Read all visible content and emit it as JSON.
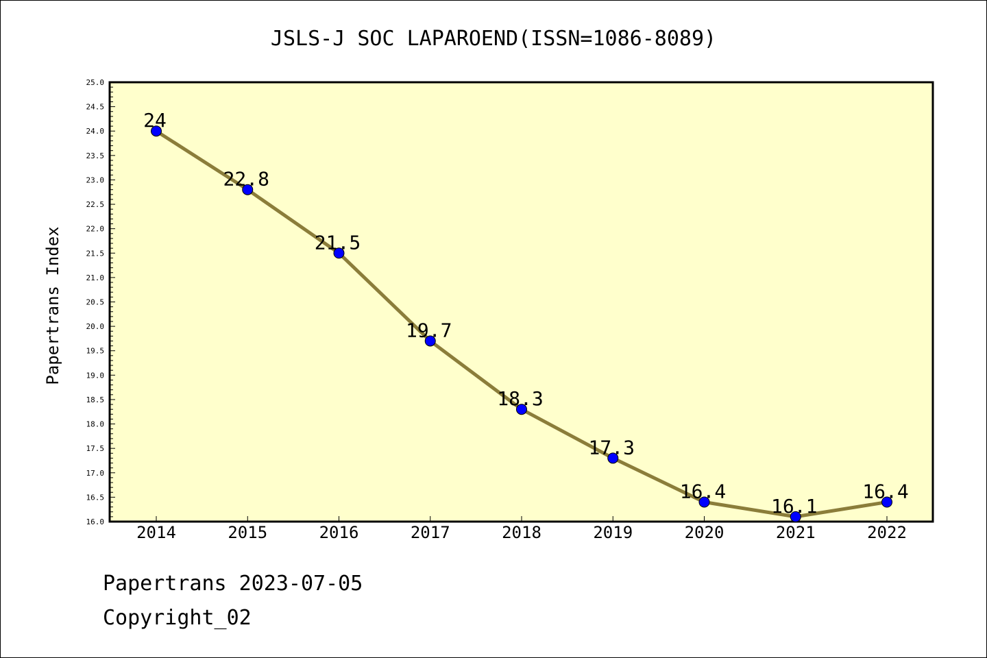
{
  "chart_data": {
    "type": "line",
    "title": "JSLS-J SOC LAPAROEND(ISSN=1086-8089)",
    "ylabel": "Papertrans Index",
    "xlabel": "",
    "categories": [
      "2014",
      "2015",
      "2016",
      "2017",
      "2018",
      "2019",
      "2020",
      "2021",
      "2022"
    ],
    "values": [
      24,
      22.8,
      21.5,
      19.7,
      18.3,
      17.3,
      16.4,
      16.1,
      16.4
    ],
    "data_labels": [
      "24",
      "22.8",
      "21.5",
      "19.7",
      "18.3",
      "17.3",
      "16.4",
      "16.1",
      "16.4"
    ],
    "ylim": [
      16.0,
      25.0
    ],
    "yticks": [
      "16.0",
      "16.5",
      "17.0",
      "17.5",
      "18.0",
      "18.5",
      "19.0",
      "19.5",
      "20.0",
      "20.5",
      "21.0",
      "21.5",
      "22.0",
      "22.5",
      "23.0",
      "23.5",
      "24.0",
      "24.5",
      "25.0"
    ],
    "grid": false,
    "colors": {
      "plot_background": "#ffffcc",
      "line": "#8b7d3a",
      "marker": "#0000ff"
    }
  },
  "footer": {
    "date_text": "Papertrans 2023-07-05",
    "copyright_text": "Copyright_02"
  }
}
